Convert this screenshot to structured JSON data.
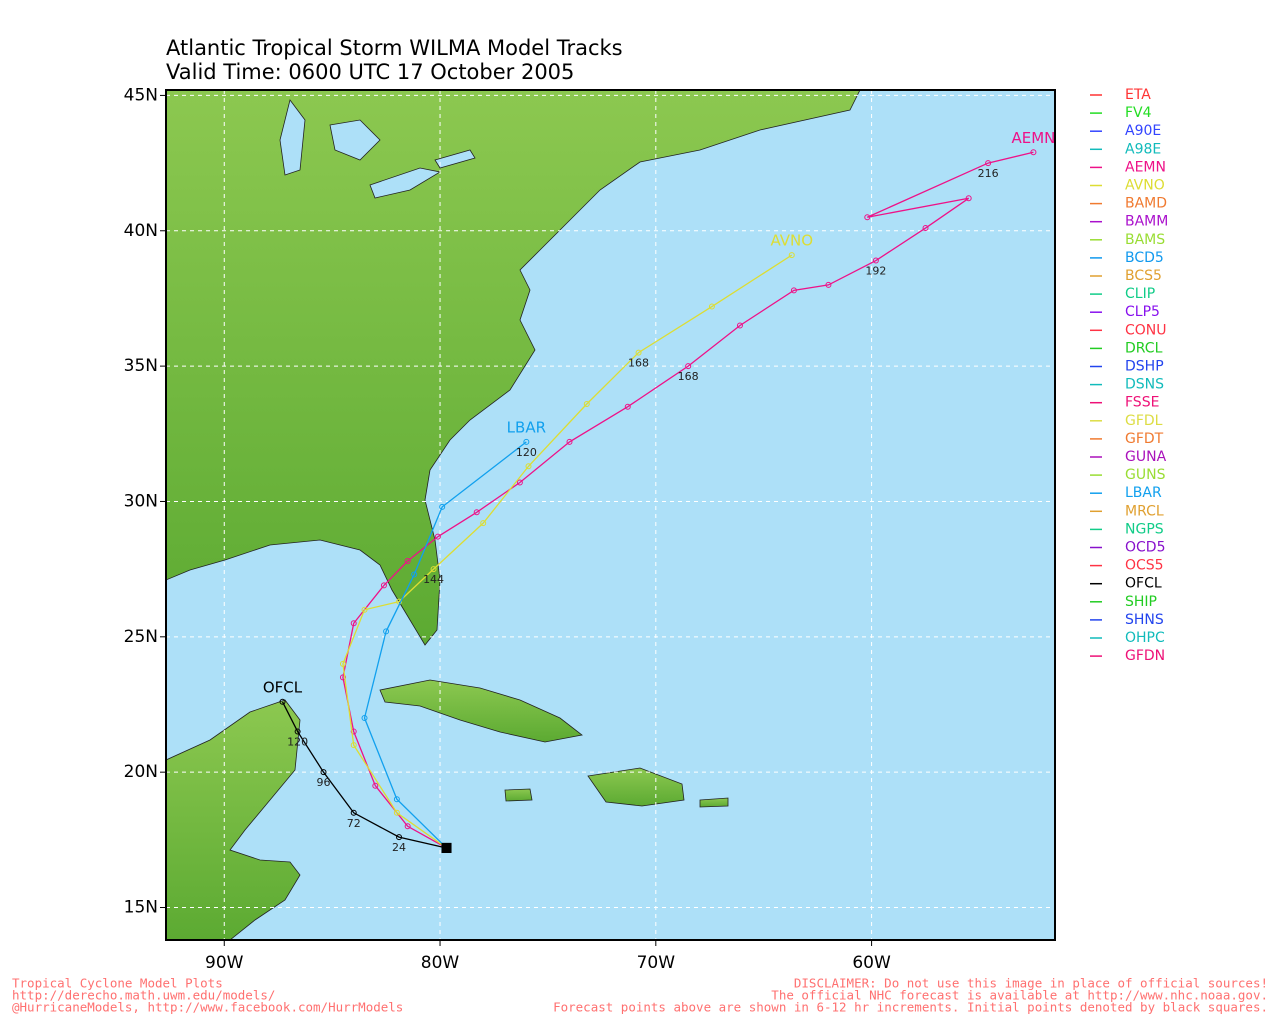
{
  "title": "Atlantic Tropical Storm WILMA Model Tracks",
  "subtitle": "Valid Time: 0600 UTC 17 October 2005",
  "map": {
    "lonlim": [
      -92.7,
      -51.5
    ],
    "latlim": [
      13.8,
      45.2
    ],
    "xticks": [
      {
        "value": -90,
        "label": "90W"
      },
      {
        "value": -80,
        "label": "80W"
      },
      {
        "value": -70,
        "label": "70W"
      },
      {
        "value": -60,
        "label": "60W"
      }
    ],
    "yticks": [
      {
        "value": 15,
        "label": "15N"
      },
      {
        "value": 20,
        "label": "20N"
      },
      {
        "value": 25,
        "label": "25N"
      },
      {
        "value": 30,
        "label": "30N"
      },
      {
        "value": 35,
        "label": "35N"
      },
      {
        "value": 40,
        "label": "40N"
      },
      {
        "value": 45,
        "label": "45N"
      }
    ],
    "grid": true
  },
  "legend": [
    {
      "name": "ETA",
      "color": "#ff3333"
    },
    {
      "name": "FV4",
      "color": "#22dd22"
    },
    {
      "name": "A90E",
      "color": "#3344ff"
    },
    {
      "name": "A98E",
      "color": "#11bbbb"
    },
    {
      "name": "AEMN",
      "color": "#ee1188"
    },
    {
      "name": "AVNO",
      "color": "#dddd33"
    },
    {
      "name": "BAMD",
      "color": "#f07a30"
    },
    {
      "name": "BAMM",
      "color": "#aa11cc"
    },
    {
      "name": "BAMS",
      "color": "#99dd33"
    },
    {
      "name": "BCD5",
      "color": "#1199ee"
    },
    {
      "name": "BCS5",
      "color": "#e0a030"
    },
    {
      "name": "CLIP",
      "color": "#11cc88"
    },
    {
      "name": "CLP5",
      "color": "#8811ee"
    },
    {
      "name": "CONU",
      "color": "#ff3344"
    },
    {
      "name": "DRCL",
      "color": "#22cc22"
    },
    {
      "name": "DSHP",
      "color": "#2244ee"
    },
    {
      "name": "DSNS",
      "color": "#11bbbb"
    },
    {
      "name": "FSSE",
      "color": "#ee1177"
    },
    {
      "name": "GFDL",
      "color": "#dddd44"
    },
    {
      "name": "GFDT",
      "color": "#f07a30"
    },
    {
      "name": "GUNA",
      "color": "#aa11bb"
    },
    {
      "name": "GUNS",
      "color": "#99dd33"
    },
    {
      "name": "LBAR",
      "color": "#11a0ee"
    },
    {
      "name": "MRCL",
      "color": "#e0a030"
    },
    {
      "name": "NGPS",
      "color": "#11cc88"
    },
    {
      "name": "OCD5",
      "color": "#8811cc"
    },
    {
      "name": "OCS5",
      "color": "#ff3344"
    },
    {
      "name": "OFCL",
      "color": "#000000"
    },
    {
      "name": "SHIP",
      "color": "#22cc22"
    },
    {
      "name": "SHNS",
      "color": "#2244ee"
    },
    {
      "name": "OHPC",
      "color": "#11bbbb"
    },
    {
      "name": "GFDN",
      "color": "#ee1177"
    }
  ],
  "tracks": [
    {
      "name": "AEMN",
      "color": "#ee1188",
      "lon": [
        -79.7,
        -81.5,
        -83.0,
        -84.0,
        -84.5,
        -84.0,
        -82.6,
        -81.5,
        -80.1,
        -78.3,
        -76.3,
        -74.0,
        -71.3,
        -68.5,
        -66.1,
        -63.6,
        -62.0,
        -59.8,
        -57.5,
        -55.5,
        -60.2,
        -54.6,
        -52.5
      ],
      "lat": [
        17.2,
        18.0,
        19.5,
        21.5,
        23.5,
        25.5,
        26.9,
        27.8,
        28.7,
        29.6,
        30.7,
        32.2,
        33.5,
        35.0,
        36.5,
        37.8,
        38.0,
        38.9,
        40.1,
        41.2,
        40.5,
        42.5,
        42.9
      ],
      "hours": [
        null,
        null,
        null,
        null,
        null,
        null,
        null,
        null,
        null,
        null,
        null,
        null,
        null,
        168,
        null,
        null,
        null,
        192,
        null,
        null,
        null,
        216,
        null
      ]
    },
    {
      "name": "AVNO",
      "color": "#dddd33",
      "lon": [
        -79.7,
        -82.0,
        -84.0,
        -84.5,
        -83.5,
        -81.9,
        -80.3,
        -78.0,
        -75.9,
        -73.2,
        -70.8,
        -67.4,
        -63.7
      ],
      "lat": [
        17.2,
        18.5,
        21.0,
        24.0,
        26.0,
        26.3,
        27.5,
        29.2,
        31.3,
        33.6,
        35.5,
        37.2,
        39.1
      ],
      "hours": [
        null,
        null,
        null,
        null,
        null,
        null,
        144,
        null,
        null,
        null,
        168,
        null,
        null
      ]
    },
    {
      "name": "LBAR",
      "color": "#11a0ee",
      "lon": [
        -79.7,
        -82.0,
        -83.5,
        -82.5,
        -81.2,
        -79.9,
        -76.0
      ],
      "lat": [
        17.2,
        19.0,
        22.0,
        25.2,
        27.3,
        29.8,
        32.2
      ],
      "hours": [
        null,
        null,
        null,
        null,
        null,
        null,
        120
      ]
    },
    {
      "name": "OFCL",
      "color": "#000000",
      "lon": [
        -79.7,
        -81.9,
        -84.0,
        -85.4,
        -86.6,
        -87.3
      ],
      "lat": [
        17.2,
        17.6,
        18.5,
        20.0,
        21.5,
        22.6
      ],
      "hours": [
        null,
        24,
        72,
        96,
        120,
        null
      ]
    }
  ],
  "footer_left": [
    "Tropical Cyclone Model Plots",
    "http://derecho.math.uwm.edu/models/",
    "@HurricaneModels, http://www.facebook.com/HurrModels"
  ],
  "footer_right": [
    "DISCLAIMER: Do not use this image in place of official sources!",
    "The official NHC forecast is available at http://www.nhc.noaa.gov.",
    "Forecast points above are shown in 6-12 hr increments. Initial points denoted by black squares."
  ]
}
